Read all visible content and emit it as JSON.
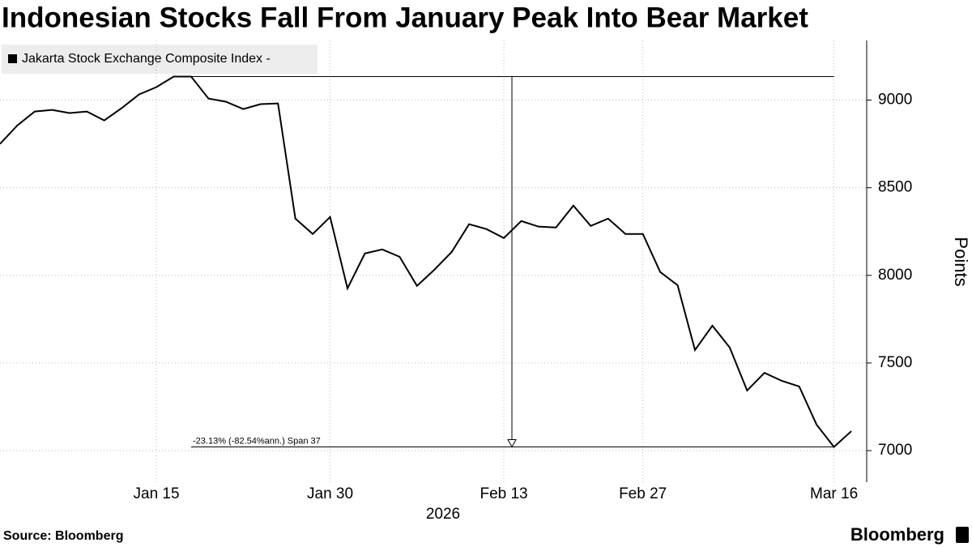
{
  "chart_data": {
    "type": "line",
    "title": "Indonesian Stocks Fall From January Peak Into Bear Market",
    "source": "Source: Bloomberg",
    "logo": "Bloomberg",
    "x_label": "2026",
    "y_label": "Points",
    "annotations": [
      "-23.13% (-82.54%ann.) Span 37"
    ],
    "categories": [
      null,
      null,
      null,
      null,
      null,
      null,
      null,
      null,
      null,
      "Jan 15",
      null,
      null,
      null,
      null,
      null,
      null,
      null,
      null,
      null,
      "Jan 30",
      null,
      null,
      null,
      null,
      null,
      null,
      null,
      null,
      null,
      "Feb 13",
      null,
      null,
      null,
      null,
      null,
      null,
      null,
      "Feb 27",
      null,
      null,
      null,
      null,
      null,
      null,
      null,
      null,
      null,
      null,
      "Mar 16",
      null
    ],
    "series": [
      {
        "name": "Jakarta Stock Exchange Composite Index -",
        "color": "#000000",
        "values": [
          8750,
          8856,
          8935,
          8944,
          8926,
          8935,
          8884,
          8954,
          9032,
          9074,
          9134,
          9134,
          9009,
          8991,
          8949,
          8977,
          8981,
          8324,
          8236,
          8333,
          7926,
          8125,
          8148,
          8106,
          7940,
          8032,
          8134,
          8292,
          8264,
          8213,
          8310,
          8278,
          8273,
          8398,
          8282,
          8324,
          8236,
          8236,
          8019,
          7944,
          7574,
          7713,
          7588,
          7343,
          7444,
          7398,
          7366,
          7148,
          7021,
          7111
        ]
      }
    ],
    "ylim": [
      6820,
      9340
    ],
    "yticks": [
      7000,
      7500,
      8000,
      8500,
      9000
    ],
    "grid": true,
    "y_axis_side": "right"
  }
}
